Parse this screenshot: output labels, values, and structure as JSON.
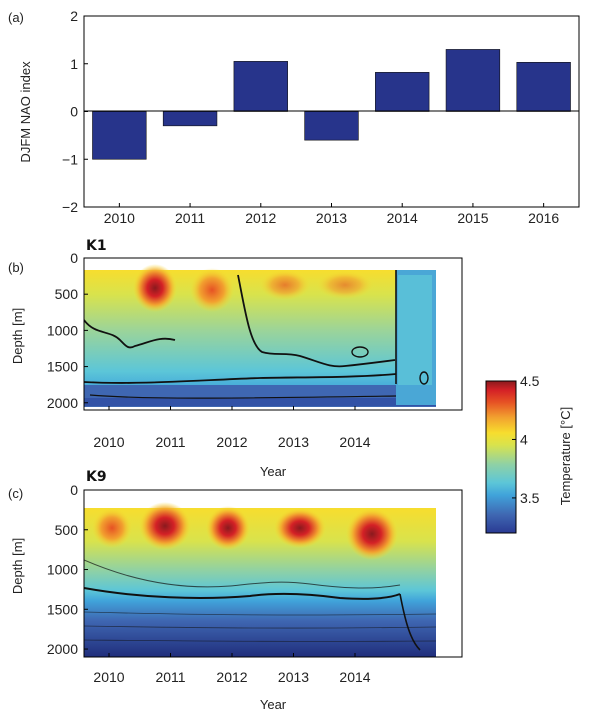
{
  "chart_data": [
    {
      "type": "bar",
      "panel_label": "(a)",
      "categories": [
        "2010",
        "2011",
        "2012",
        "2013",
        "2014",
        "2015",
        "2016"
      ],
      "values": [
        -1.0,
        -0.3,
        1.05,
        -0.6,
        0.82,
        1.3,
        1.03
      ],
      "ylabel": "DJFM NAO index",
      "ylim": [
        -2,
        2
      ],
      "yticks": [
        "2",
        "1",
        "0",
        "−1",
        "−2"
      ],
      "color": "#27348b"
    },
    {
      "type": "heatmap",
      "panel_label": "(b)",
      "station": "K1",
      "ylabel": "Depth [m]",
      "xlabel": "Year",
      "xticks": [
        "2010",
        "2011",
        "2012",
        "2013",
        "2014"
      ],
      "yticks": [
        "0",
        "500",
        "1000",
        "1500",
        "2000"
      ],
      "ylim": [
        2100,
        0
      ],
      "data_depth_range": [
        200,
        1880
      ]
    },
    {
      "type": "heatmap",
      "panel_label": "(c)",
      "station": "K9",
      "ylabel": "Depth [m]",
      "xlabel": "Year",
      "xticks": [
        "2010",
        "2011",
        "2012",
        "2013",
        "2014"
      ],
      "yticks": [
        "0",
        "500",
        "1000",
        "1500",
        "2000"
      ],
      "ylim": [
        2100,
        0
      ],
      "data_depth_range": [
        230,
        2080
      ]
    }
  ],
  "colorbar": {
    "label": "Temperature [°C]",
    "ticks": [
      "4.5",
      "4",
      "3.5"
    ],
    "range": [
      3.2,
      4.5
    ],
    "colormap": [
      "#2a3a93",
      "#3f67b2",
      "#40a3da",
      "#5cc6d8",
      "#8ed1a6",
      "#d9e34c",
      "#f7dd2e",
      "#f2a12f",
      "#e65224",
      "#d42126",
      "#8a1a1e"
    ]
  }
}
